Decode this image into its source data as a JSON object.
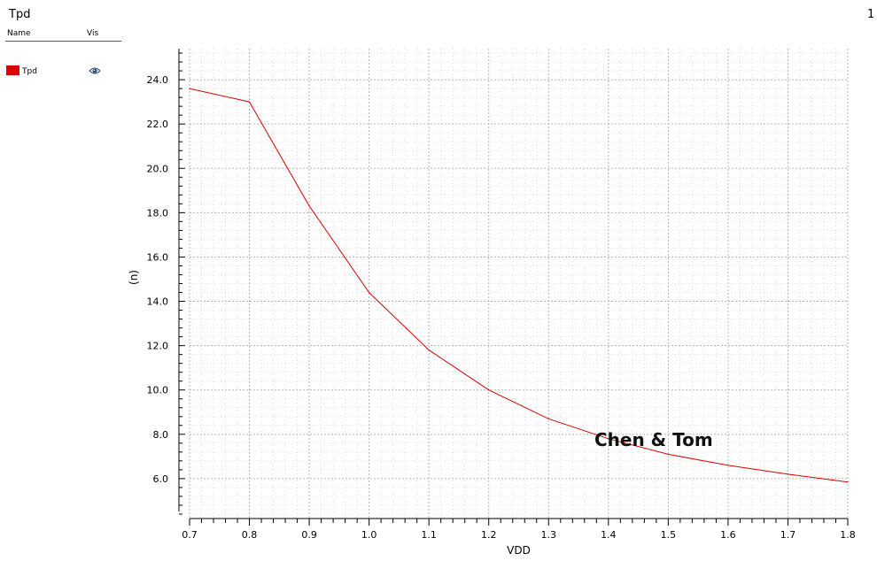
{
  "header": {
    "title": "Tpd",
    "page_number": "1"
  },
  "legend": {
    "columns": {
      "name": "Name",
      "vis": "Vis"
    },
    "items": [
      {
        "label": "Tpd",
        "color": "#dd0000",
        "icon": "eye-icon"
      }
    ]
  },
  "watermark": "Chen & Tom",
  "chart_data": {
    "type": "line",
    "xlabel": "VDD",
    "ylabel": "(n)",
    "xlim": [
      0.7,
      1.8
    ],
    "ylim": [
      4.2,
      25.4
    ],
    "xticks": [
      "0.7",
      "0.8",
      "0.9",
      "1.0",
      "1.1",
      "1.2",
      "1.3",
      "1.4",
      "1.5",
      "1.6",
      "1.7",
      "1.8"
    ],
    "yticks": [
      "6.0",
      "8.0",
      "10.0",
      "12.0",
      "14.0",
      "16.0",
      "18.0",
      "20.0",
      "22.0",
      "24.0"
    ],
    "grid": true,
    "series": [
      {
        "name": "Tpd",
        "color": "#dd0000",
        "x": [
          0.7,
          0.8,
          0.9,
          1.0,
          1.1,
          1.2,
          1.3,
          1.4,
          1.5,
          1.6,
          1.7,
          1.8
        ],
        "y": [
          23.6,
          23.0,
          18.3,
          14.4,
          11.8,
          10.0,
          8.7,
          7.8,
          7.1,
          6.6,
          6.2,
          5.85
        ]
      }
    ]
  }
}
